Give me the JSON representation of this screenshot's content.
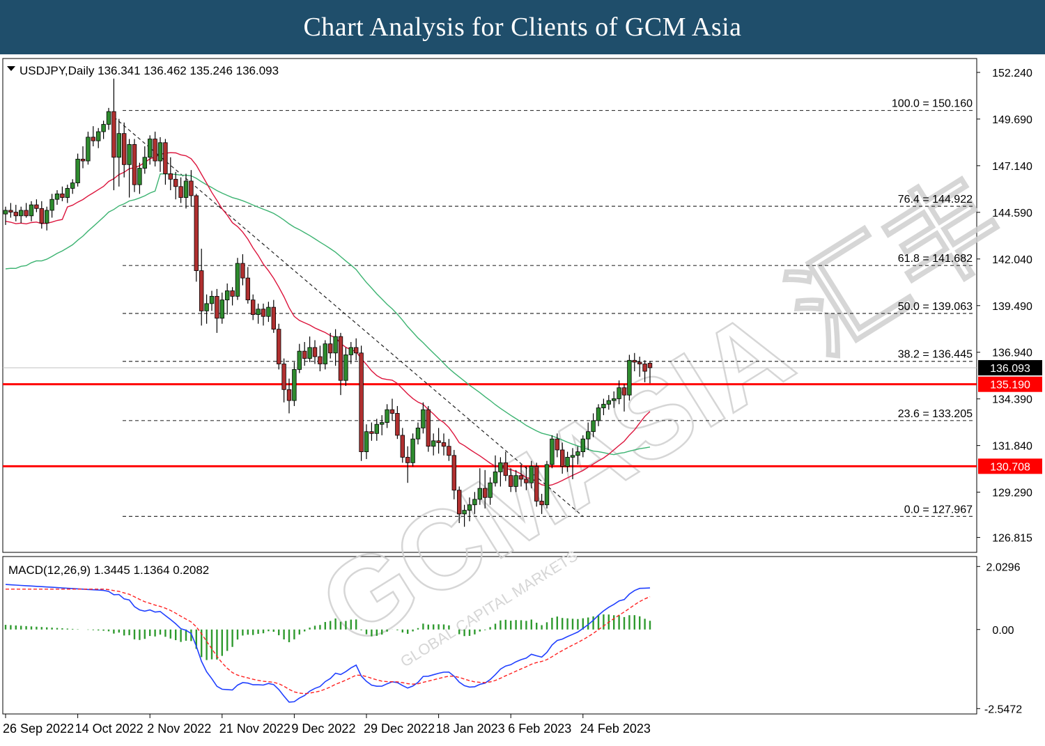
{
  "banner": {
    "title": "Chart Analysis for Clients of GCM Asia"
  },
  "colors": {
    "banner_bg": "#1f4e6b",
    "bull": "#2e8b2e",
    "bear": "#b03030",
    "ma_fast": "#dc143c",
    "ma_slow": "#3cb371",
    "macd_line": "#1f3fff",
    "signal_line": "#ff2020",
    "histogram": "#2e9a2e",
    "support_resistance": "#ff0000"
  },
  "watermark": {
    "text": "GCMASIA",
    "chinese": "汇丰",
    "sub": "GLOBAL CAPITAL MARKETS"
  },
  "chart_data": [
    {
      "type": "candlestick",
      "symbol": "USDJPY",
      "timeframe": "Daily",
      "header": "USDJPY,Daily  136.341 136.462 135.246 136.093",
      "ohlc_last": {
        "open": 136.341,
        "high": 136.462,
        "low": 135.246,
        "close": 136.093
      },
      "price_axis_ticks": [
        "152.240",
        "149.690",
        "147.140",
        "144.590",
        "142.040",
        "139.490",
        "136.940",
        "134.390",
        "131.840",
        "129.290",
        "126.815"
      ],
      "ylim": [
        126.0,
        153.0
      ],
      "x_tick_labels": [
        "26 Sep 2022",
        "14 Oct 2022",
        "2 Nov 2022",
        "21 Nov 2022",
        "9 Dec 2022",
        "29 Dec 2022",
        "18 Jan 2023",
        "6 Feb 2023",
        "24 Feb 2023"
      ],
      "x_tick_bar_index": [
        0,
        14,
        28,
        42,
        56,
        70,
        84,
        98,
        112
      ],
      "current_price": {
        "label": "136.093",
        "value": 136.093
      },
      "horizontal_levels": [
        {
          "label": "135.190",
          "value": 135.19
        },
        {
          "label": "130.708",
          "value": 130.708
        }
      ],
      "fibonacci": [
        {
          "label": "100.0 = 150.160",
          "value": 150.16
        },
        {
          "label": "76.4 = 144.922",
          "value": 144.922
        },
        {
          "label": "61.8 = 141.682",
          "value": 141.682
        },
        {
          "label": "50.0 = 139.063",
          "value": 139.063
        },
        {
          "label": "38.2 = 136.445",
          "value": 136.445
        },
        {
          "label": "23.6 = 133.205",
          "value": 133.205
        },
        {
          "label": "0.0 = 127.967",
          "value": 127.967
        }
      ],
      "trendline": {
        "from": {
          "bar": 21,
          "price": 149.8
        },
        "to": {
          "bar": 112,
          "price": 127.967
        }
      },
      "ohlc": [
        [
          144.5,
          144.9,
          143.9,
          144.7
        ],
        [
          144.7,
          145.1,
          144.3,
          144.6
        ],
        [
          144.6,
          145.0,
          144.1,
          144.4
        ],
        [
          144.4,
          144.9,
          144.0,
          144.7
        ],
        [
          144.7,
          145.1,
          144.3,
          144.4
        ],
        [
          144.4,
          145.2,
          144.1,
          145.0
        ],
        [
          145.0,
          145.3,
          144.6,
          144.8
        ],
        [
          144.8,
          145.2,
          143.7,
          144.0
        ],
        [
          144.0,
          144.9,
          143.6,
          144.7
        ],
        [
          144.7,
          145.6,
          144.3,
          145.3
        ],
        [
          145.3,
          145.8,
          145.0,
          145.6
        ],
        [
          145.6,
          146.0,
          145.2,
          145.4
        ],
        [
          145.4,
          146.1,
          145.1,
          145.9
        ],
        [
          145.9,
          146.4,
          145.6,
          146.2
        ],
        [
          146.2,
          147.8,
          146.0,
          147.5
        ],
        [
          147.5,
          148.2,
          147.0,
          147.4
        ],
        [
          147.4,
          149.0,
          147.2,
          148.7
        ],
        [
          148.7,
          149.3,
          148.2,
          148.5
        ],
        [
          148.5,
          149.2,
          148.1,
          149.0
        ],
        [
          149.0,
          149.6,
          148.6,
          149.4
        ],
        [
          149.4,
          150.3,
          149.1,
          150.1
        ],
        [
          150.1,
          151.9,
          145.8,
          147.6
        ],
        [
          147.6,
          149.7,
          146.0,
          148.9
        ],
        [
          148.9,
          149.5,
          146.5,
          147.2
        ],
        [
          147.2,
          148.6,
          145.4,
          148.3
        ],
        [
          148.3,
          148.6,
          145.7,
          146.1
        ],
        [
          146.1,
          147.3,
          145.6,
          147.0
        ],
        [
          147.0,
          148.2,
          146.7,
          147.6
        ],
        [
          147.6,
          148.8,
          147.2,
          148.6
        ],
        [
          148.6,
          149.0,
          147.1,
          147.4
        ],
        [
          147.4,
          148.7,
          146.8,
          148.4
        ],
        [
          148.4,
          148.6,
          146.1,
          146.7
        ],
        [
          146.7,
          147.6,
          145.8,
          146.4
        ],
        [
          146.4,
          146.8,
          145.3,
          146.0
        ],
        [
          146.0,
          146.5,
          145.1,
          145.4
        ],
        [
          145.4,
          146.7,
          144.8,
          146.3
        ],
        [
          146.3,
          146.9,
          144.9,
          145.5
        ],
        [
          145.5,
          145.6,
          140.8,
          141.4
        ],
        [
          141.4,
          142.6,
          138.4,
          139.2
        ],
        [
          139.2,
          140.1,
          138.5,
          139.6
        ],
        [
          139.6,
          140.3,
          139.2,
          140.0
        ],
        [
          140.0,
          140.4,
          138.0,
          138.8
        ],
        [
          138.8,
          140.2,
          138.5,
          139.8
        ],
        [
          139.8,
          140.7,
          139.0,
          140.3
        ],
        [
          140.3,
          140.5,
          139.5,
          140.0
        ],
        [
          140.0,
          142.1,
          139.8,
          141.8
        ],
        [
          141.8,
          142.3,
          140.6,
          141.0
        ],
        [
          141.0,
          141.6,
          139.6,
          139.8
        ],
        [
          139.8,
          140.1,
          138.7,
          139.0
        ],
        [
          139.0,
          139.6,
          138.5,
          139.3
        ],
        [
          139.3,
          139.6,
          138.4,
          138.9
        ],
        [
          138.9,
          139.7,
          138.6,
          139.4
        ],
        [
          139.4,
          139.8,
          138.0,
          138.2
        ],
        [
          138.2,
          138.5,
          136.0,
          136.3
        ],
        [
          136.3,
          136.6,
          134.2,
          134.9
        ],
        [
          134.9,
          135.5,
          133.6,
          134.3
        ],
        [
          134.3,
          136.4,
          134.0,
          136.0
        ],
        [
          136.0,
          137.4,
          135.8,
          137.0
        ],
        [
          137.0,
          137.5,
          136.2,
          136.6
        ],
        [
          136.6,
          137.8,
          136.4,
          137.2
        ],
        [
          137.2,
          137.6,
          136.3,
          136.7
        ],
        [
          136.7,
          137.3,
          135.9,
          136.3
        ],
        [
          136.3,
          137.6,
          136.0,
          137.4
        ],
        [
          137.4,
          138.0,
          136.6,
          136.9
        ],
        [
          136.9,
          138.2,
          136.2,
          137.8
        ],
        [
          137.8,
          138.0,
          134.6,
          135.4
        ],
        [
          135.4,
          137.2,
          135.1,
          136.8
        ],
        [
          136.8,
          137.5,
          136.3,
          137.2
        ],
        [
          137.2,
          137.7,
          136.5,
          136.9
        ],
        [
          136.9,
          137.3,
          131.0,
          131.5
        ],
        [
          131.5,
          133.0,
          131.1,
          132.6
        ],
        [
          132.6,
          133.1,
          132.1,
          132.5
        ],
        [
          132.5,
          133.3,
          132.1,
          133.0
        ],
        [
          133.0,
          133.5,
          132.4,
          133.1
        ],
        [
          133.1,
          134.1,
          132.8,
          133.8
        ],
        [
          133.8,
          134.4,
          133.2,
          133.6
        ],
        [
          133.6,
          134.0,
          132.2,
          132.4
        ],
        [
          132.4,
          132.8,
          130.9,
          131.2
        ],
        [
          131.2,
          131.8,
          129.8,
          130.9
        ],
        [
          130.9,
          132.5,
          130.7,
          132.2
        ],
        [
          132.2,
          133.1,
          131.9,
          132.8
        ],
        [
          132.8,
          134.2,
          132.5,
          133.8
        ],
        [
          133.8,
          134.0,
          131.5,
          131.8
        ],
        [
          131.8,
          132.5,
          131.3,
          132.1
        ],
        [
          132.1,
          132.8,
          131.4,
          132.0
        ],
        [
          132.0,
          132.5,
          131.3,
          131.8
        ],
        [
          131.8,
          132.2,
          131.0,
          131.3
        ],
        [
          131.3,
          131.6,
          128.9,
          129.4
        ],
        [
          129.4,
          129.6,
          127.6,
          128.1
        ],
        [
          128.1,
          128.6,
          127.4,
          128.3
        ],
        [
          128.3,
          129.0,
          127.7,
          128.6
        ],
        [
          128.6,
          129.3,
          128.1,
          128.9
        ],
        [
          128.9,
          130.6,
          128.6,
          129.5
        ],
        [
          129.5,
          130.5,
          128.4,
          129.0
        ],
        [
          129.0,
          130.1,
          128.6,
          129.8
        ],
        [
          129.8,
          131.3,
          129.6,
          130.4
        ],
        [
          130.4,
          131.2,
          129.6,
          130.9
        ],
        [
          130.9,
          131.5,
          129.9,
          130.2
        ],
        [
          130.2,
          130.6,
          129.3,
          129.6
        ],
        [
          129.6,
          130.5,
          129.3,
          130.2
        ],
        [
          130.2,
          130.8,
          129.6,
          130.0
        ],
        [
          130.0,
          130.7,
          129.4,
          129.8
        ],
        [
          129.8,
          131.0,
          129.5,
          130.7
        ],
        [
          130.7,
          130.9,
          128.5,
          128.8
        ],
        [
          128.8,
          129.2,
          128.1,
          128.6
        ],
        [
          128.6,
          131.0,
          128.4,
          130.8
        ],
        [
          130.8,
          132.4,
          130.6,
          132.2
        ],
        [
          132.2,
          132.5,
          131.2,
          131.6
        ],
        [
          131.6,
          132.0,
          130.3,
          130.7
        ],
        [
          130.7,
          131.5,
          130.4,
          131.2
        ],
        [
          131.2,
          131.7,
          130.0,
          131.3
        ],
        [
          131.3,
          131.8,
          130.8,
          131.5
        ],
        [
          131.5,
          132.4,
          131.2,
          132.2
        ],
        [
          132.2,
          133.1,
          131.6,
          132.6
        ],
        [
          132.6,
          133.6,
          132.3,
          133.2
        ],
        [
          133.2,
          134.1,
          132.9,
          133.9
        ],
        [
          133.9,
          134.4,
          133.5,
          134.1
        ],
        [
          134.1,
          134.6,
          133.8,
          134.3
        ],
        [
          134.3,
          134.8,
          133.9,
          134.4
        ],
        [
          134.4,
          135.4,
          134.1,
          135.0
        ],
        [
          135.0,
          135.2,
          133.7,
          134.6
        ],
        [
          134.6,
          136.8,
          134.3,
          136.5
        ],
        [
          136.5,
          136.9,
          135.9,
          136.4
        ],
        [
          136.4,
          136.7,
          135.6,
          136.3
        ],
        [
          136.3,
          136.5,
          135.3,
          135.9
        ],
        [
          136.341,
          136.462,
          135.246,
          136.093
        ]
      ]
    },
    {
      "type": "line",
      "title": "MACD(12,26,9)",
      "header": "MACD(12,26,9) 1.3445 1.1364 0.2082",
      "values_label": {
        "macd": 1.3445,
        "signal": 1.1364,
        "histogram": 0.2082
      },
      "y_axis_ticks": [
        "2.0296",
        "0.00",
        "-2.5472"
      ],
      "ylim": [
        -2.72,
        2.35
      ]
    }
  ]
}
